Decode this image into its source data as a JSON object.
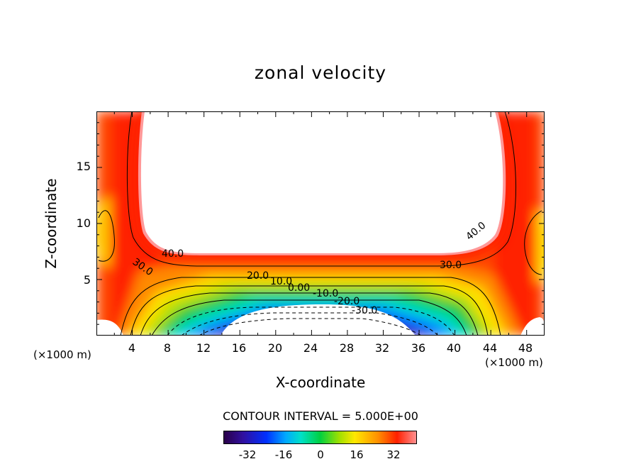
{
  "chart_data": {
    "type": "contour",
    "title": "zonal velocity",
    "xlabel": "X-coordinate",
    "ylabel": "Z-coordinate",
    "x_unit": "(×1000 m)",
    "y_unit": "(×1000 m)",
    "xlim": [
      0,
      50
    ],
    "ylim": [
      0,
      20
    ],
    "x_ticks": [
      "4",
      "8",
      "12",
      "16",
      "20",
      "24",
      "28",
      "32",
      "36",
      "40",
      "44",
      "48"
    ],
    "y_ticks": [
      "5",
      "10",
      "15"
    ],
    "contour_interval_text": "CONTOUR INTERVAL = 5.000E+00",
    "contour_labels": [
      "40.0",
      "30.0",
      "20.0",
      "10.0",
      "0.00",
      "-10.0",
      "-20.0",
      "-30.0",
      "40.0",
      "30.0"
    ],
    "colorbar_ticks": [
      "-32",
      "-16",
      "0",
      "16",
      "32"
    ],
    "colorbar_range": [
      -45,
      45
    ],
    "features": [
      {
        "name": "upper jet core",
        "value_min": 45,
        "x_range": [
          5,
          45
        ],
        "z_range": [
          6.5,
          20
        ]
      },
      {
        "name": "near-surface easterly core",
        "value_min": -45,
        "x_range": [
          15,
          34
        ],
        "z_range": [
          0,
          2
        ]
      }
    ],
    "colors": {
      "high": "#ff2000",
      "mid": "#00d040",
      "low": "#3010a0"
    }
  }
}
